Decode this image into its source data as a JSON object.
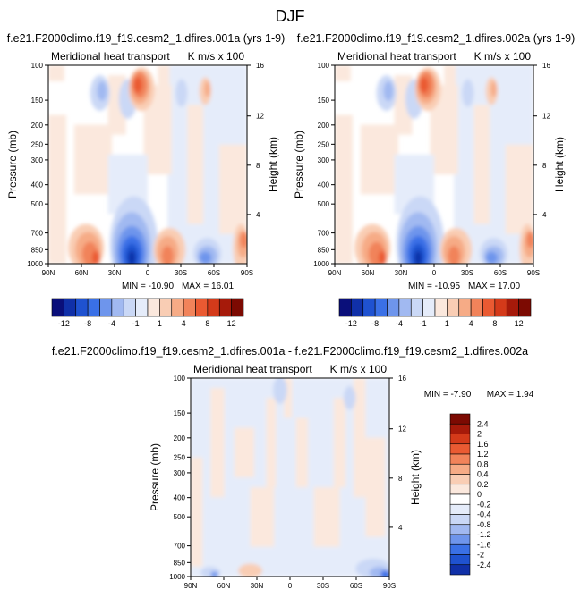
{
  "figure_title": "DJF",
  "colors": {
    "blues": [
      "#0a0f7a",
      "#1030a8",
      "#1f52d0",
      "#3a70e6",
      "#6e95ec",
      "#a1b9f1",
      "#cad8f6",
      "#e5ecfa"
    ],
    "reds": [
      "#fbe8dd",
      "#f9cdb4",
      "#f6ab86",
      "#f1835a",
      "#ea5a32",
      "#d43a1a",
      "#a61a0a",
      "#7c0a02"
    ],
    "background": "#ffffff"
  },
  "chart_data": [
    {
      "type": "contour",
      "panel_title": "f.e21.F2000climo.f19_f19.cesm2_1.dfires.001a (yrs 1-9)",
      "subtitle_left": "Meridional heat transport",
      "subtitle_right": "K m/s x 100",
      "ylabel": "Pressure (mb)",
      "y2label": "Height (km)",
      "x_ticks": [
        "90N",
        "60N",
        "30N",
        "0",
        "30S",
        "60S",
        "90S"
      ],
      "y_ticks": [
        "100",
        "150",
        "200",
        "250",
        "300",
        "400",
        "500",
        "700",
        "850",
        "1000"
      ],
      "y2_ticks": [
        "16",
        "12",
        "8",
        "4"
      ],
      "min_label": "MIN = -10.90",
      "max_label": "MAX = 16.01",
      "min": -10.9,
      "max": 16.01,
      "colorbar_labels": [
        "-12",
        "-8",
        "-4",
        "-1",
        "1",
        "4",
        "8",
        "12"
      ]
    },
    {
      "type": "contour",
      "panel_title": "f.e21.F2000climo.f19_f19.cesm2_1.dfires.002a (yrs 1-9)",
      "subtitle_left": "Meridional heat transport",
      "subtitle_right": "K m/s x 100",
      "ylabel": "Pressure (mb)",
      "y2label": "Height (km)",
      "x_ticks": [
        "90N",
        "60N",
        "30N",
        "0",
        "30S",
        "60S",
        "90S"
      ],
      "y_ticks": [
        "100",
        "150",
        "200",
        "250",
        "300",
        "400",
        "500",
        "700",
        "850",
        "1000"
      ],
      "y2_ticks": [
        "16",
        "12",
        "8",
        "4"
      ],
      "min_label": "MIN = -10.95",
      "max_label": "MAX = 17.00",
      "min": -10.95,
      "max": 17.0,
      "colorbar_labels": [
        "-12",
        "-8",
        "-4",
        "-1",
        "1",
        "4",
        "8",
        "12"
      ]
    },
    {
      "type": "contour",
      "panel_title": "f.e21.F2000climo.f19_f19.cesm2_1.dfires.001a - f.e21.F2000climo.f19_f19.cesm2_1.dfires.002a",
      "subtitle_left": "Meridional heat transport",
      "subtitle_right": "K m/s x 100",
      "ylabel": "Pressure (mb)",
      "y2label": "Height (km)",
      "x_ticks": [
        "90N",
        "60N",
        "30N",
        "0",
        "30S",
        "60S",
        "90S"
      ],
      "y_ticks": [
        "100",
        "150",
        "200",
        "250",
        "300",
        "400",
        "500",
        "700",
        "850",
        "1000"
      ],
      "y2_ticks": [
        "16",
        "12",
        "8",
        "4"
      ],
      "min_label": "MIN = -7.90",
      "max_label": "MAX =  1.94",
      "min": -7.9,
      "max": 1.94,
      "colorbar_labels": [
        "2.4",
        "2",
        "1.6",
        "1.2",
        "0.8",
        "0.4",
        "0.2",
        "0",
        "-0.2",
        "-0.4",
        "-0.8",
        "-1.2",
        "-1.6",
        "-2",
        "-2.4"
      ]
    }
  ]
}
